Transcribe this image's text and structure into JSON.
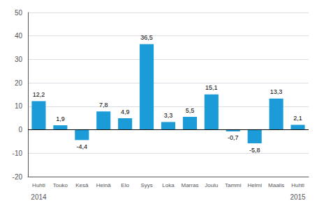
{
  "chart_data": {
    "type": "bar",
    "categories": [
      "Huhti",
      "Touko",
      "Kesä",
      "Heinä",
      "Elo",
      "Syys",
      "Loka",
      "Marras",
      "Joulu",
      "Tammi",
      "Helmi",
      "Maalis",
      "Huhti"
    ],
    "values": [
      12.2,
      1.9,
      -4.4,
      7.8,
      4.9,
      36.5,
      3.3,
      5.5,
      15.1,
      -0.7,
      -5.8,
      13.3,
      2.1
    ],
    "value_labels": [
      "12,2",
      "1,9",
      "-4,4",
      "7,8",
      "4,9",
      "36,5",
      "3,3",
      "5,5",
      "15,1",
      "-0,7",
      "-5,8",
      "13,3",
      "2,1"
    ],
    "color": "#1b9cd8",
    "ylim": [
      -20,
      50
    ],
    "yticks": [
      -20,
      -10,
      0,
      10,
      20,
      30,
      40,
      50
    ],
    "grid": true,
    "data_labels": true,
    "annotations": [
      {
        "text": "2014",
        "x": 0
      },
      {
        "text": "2015",
        "x": 12
      }
    ]
  }
}
